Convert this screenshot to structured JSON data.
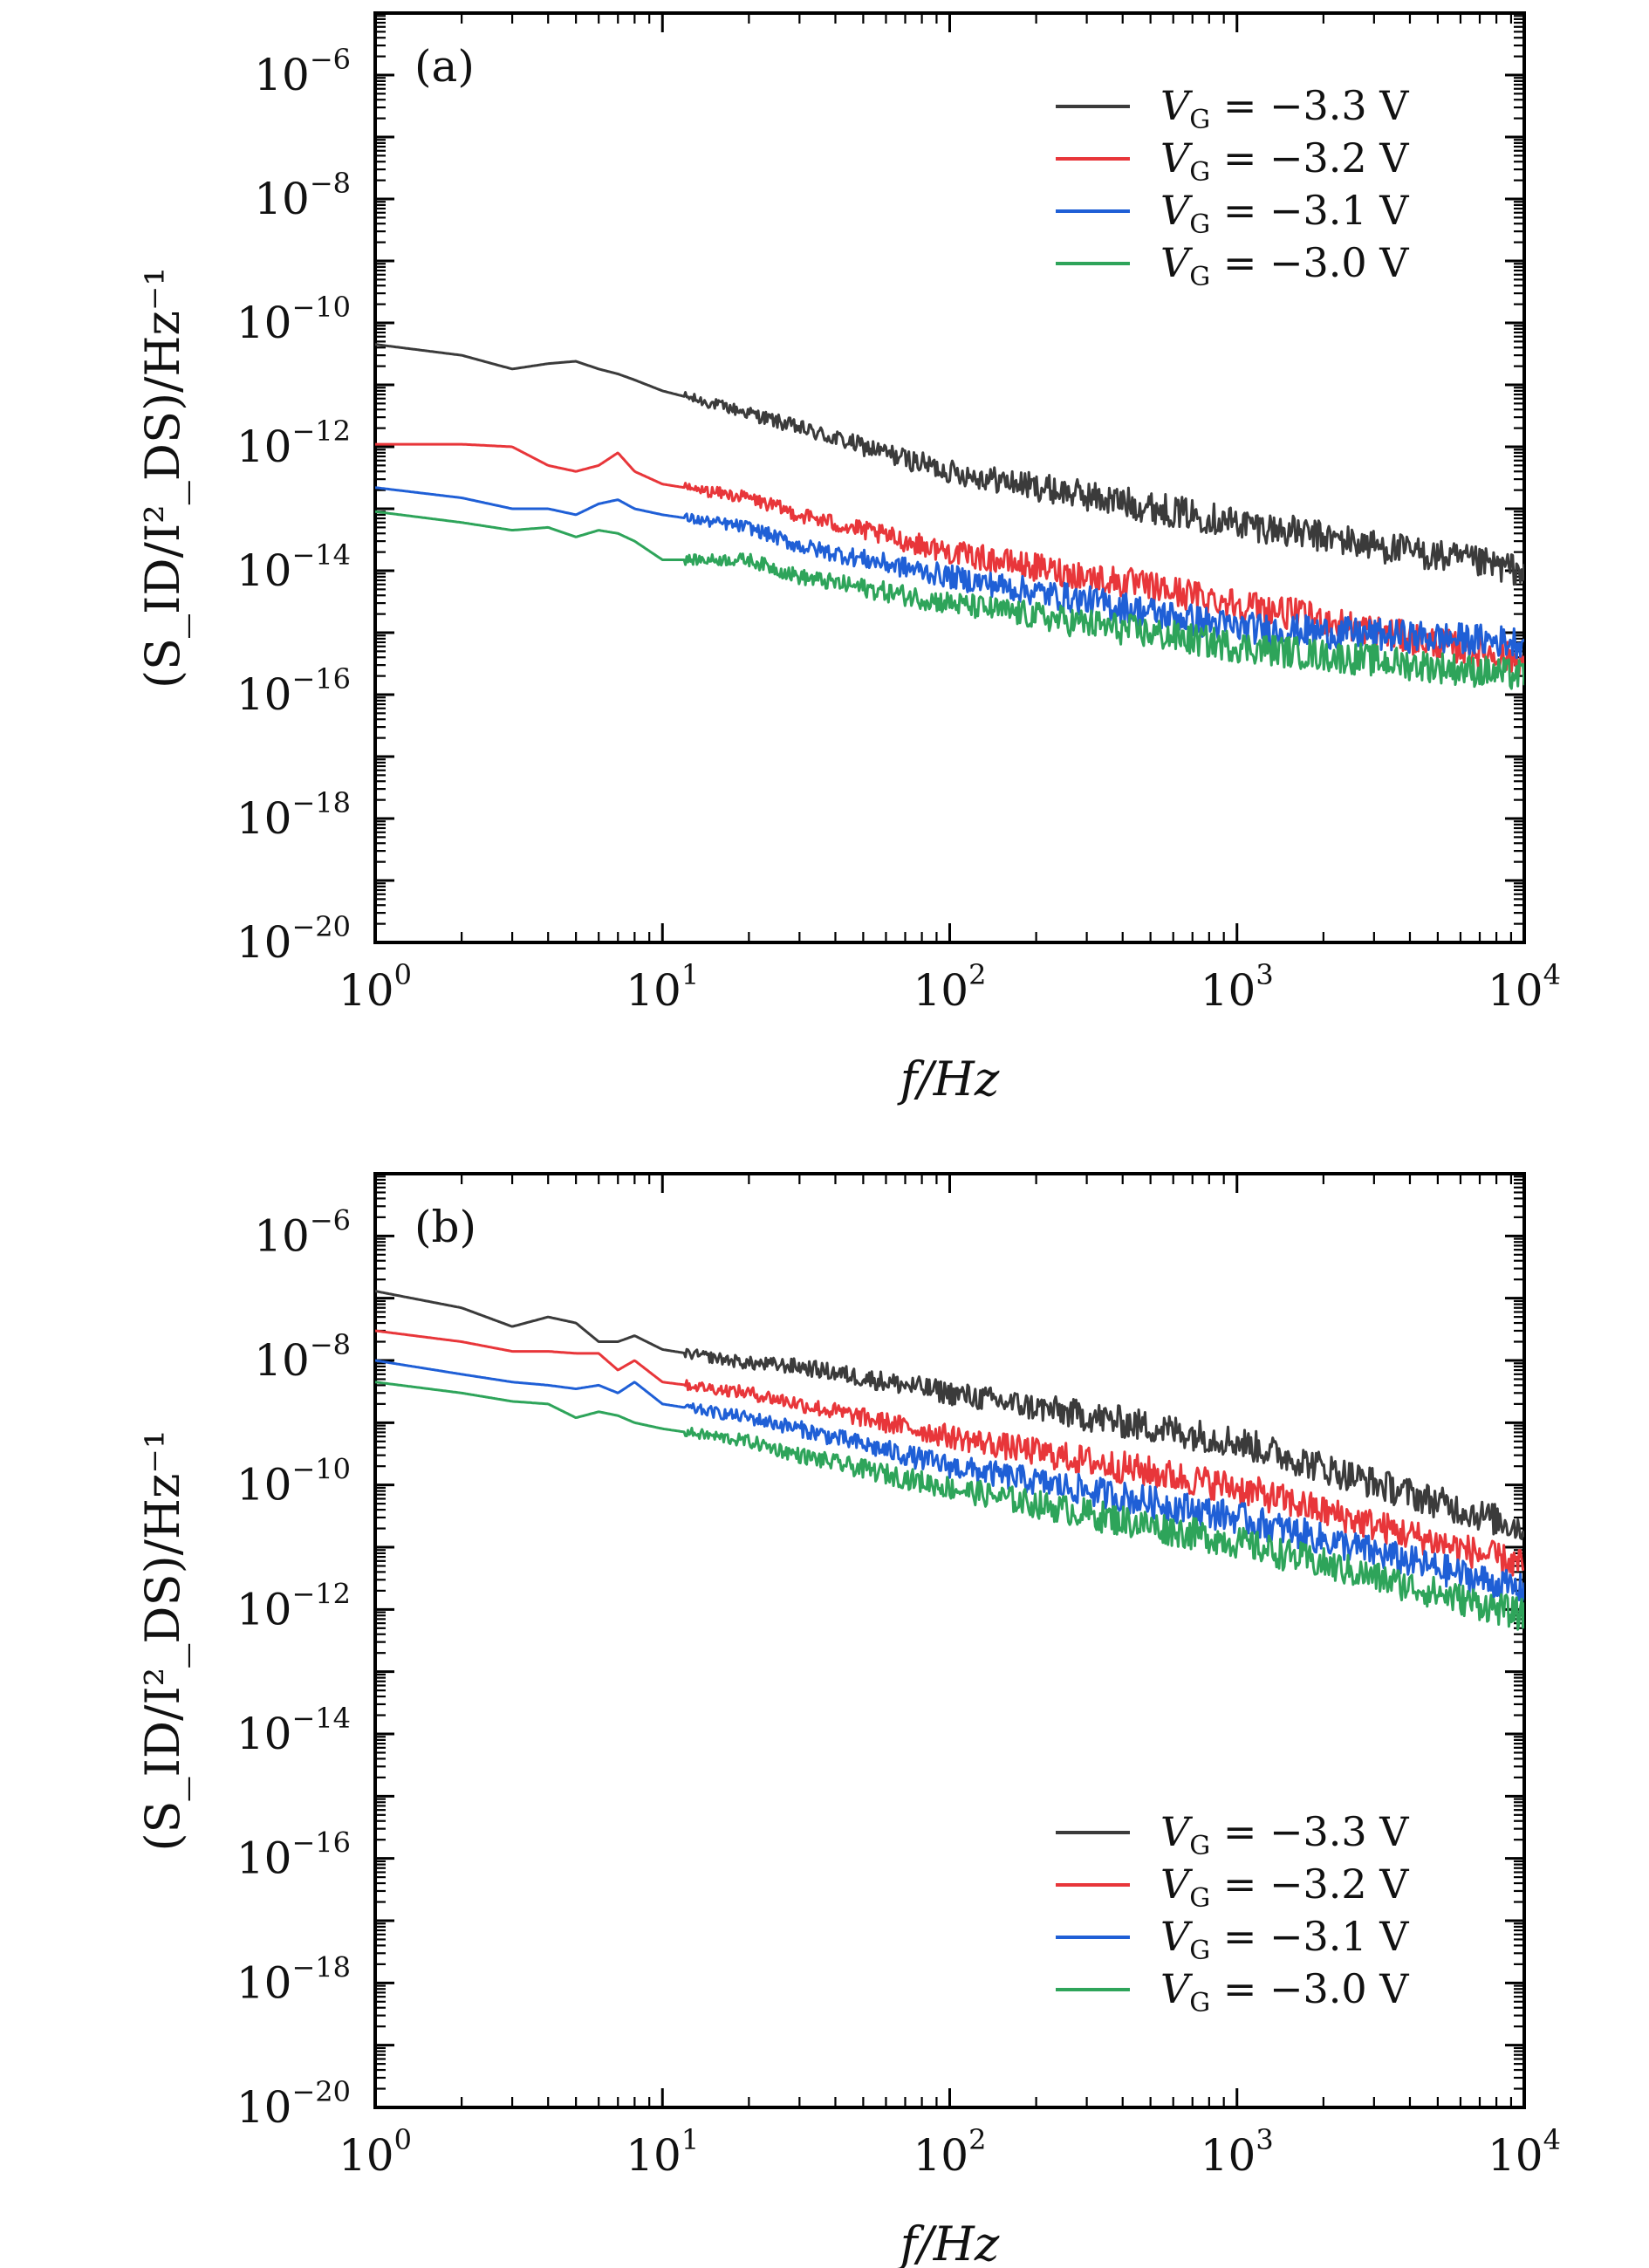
{
  "chart_data": [
    {
      "type": "line",
      "panel_label": "(a)",
      "xscale": "log",
      "yscale": "log",
      "xlim": [
        1,
        10000
      ],
      "ylim": [
        1e-20,
        1e-05
      ],
      "xlabel": "f/Hz",
      "ylabel": "(S_ID/I²_DS)/Hz⁻¹",
      "xticks": [
        {
          "base": "10",
          "exp": "0"
        },
        {
          "base": "10",
          "exp": "1"
        },
        {
          "base": "10",
          "exp": "2"
        },
        {
          "base": "10",
          "exp": "3"
        },
        {
          "base": "10",
          "exp": "4"
        }
      ],
      "yticks": [
        {
          "base": "10",
          "exp": "−20"
        },
        {
          "base": "10",
          "exp": "−18"
        },
        {
          "base": "10",
          "exp": "−16"
        },
        {
          "base": "10",
          "exp": "−14"
        },
        {
          "base": "10",
          "exp": "−12"
        },
        {
          "base": "10",
          "exp": "−10"
        },
        {
          "base": "10",
          "exp": "−8"
        },
        {
          "base": "10",
          "exp": "−6"
        }
      ],
      "legend_position": "top-right",
      "series": [
        {
          "name": "V_G = −3.3 V",
          "label_main": "V",
          "label_sub": "G",
          "label_rest": " = −3.3 V",
          "color": "#3b3b3b",
          "x": [
            1,
            2,
            3,
            4,
            5,
            6,
            7,
            8,
            10,
            20,
            30,
            100,
            1000,
            10000
          ],
          "y": [
            4.5e-11,
            3e-11,
            1.8e-11,
            2.2e-11,
            2.4e-11,
            1.8e-11,
            1.5e-11,
            1.2e-11,
            8e-12,
            3.5e-12,
            2e-12,
            4e-13,
            6e-14,
            1e-14
          ]
        },
        {
          "name": "V_G = −3.2 V",
          "label_main": "V",
          "label_sub": "G",
          "label_rest": " = −3.2 V",
          "color": "#e8363a",
          "x": [
            1,
            2,
            3,
            4,
            5,
            6,
            7,
            8,
            10,
            20,
            30,
            100,
            1000,
            10000
          ],
          "y": [
            1.1e-12,
            1.1e-12,
            1e-12,
            5e-13,
            4e-13,
            5e-13,
            8e-13,
            4e-13,
            2.5e-13,
            1.5e-13,
            8e-14,
            2e-14,
            3e-15,
            3.5e-16
          ]
        },
        {
          "name": "V_G = −3.1 V",
          "label_main": "V",
          "label_sub": "G",
          "label_rest": " = −3.1 V",
          "color": "#1f5fd6",
          "x": [
            1,
            2,
            3,
            4,
            5,
            6,
            7,
            8,
            10,
            20,
            30,
            100,
            1000,
            10000
          ],
          "y": [
            2.2e-13,
            1.5e-13,
            1e-13,
            1e-13,
            8e-14,
            1.2e-13,
            1.4e-13,
            1e-13,
            8e-14,
            5e-14,
            2.5e-14,
            8e-15,
            1.2e-15,
            7e-16
          ]
        },
        {
          "name": "V_G = −3.0 V",
          "label_main": "V",
          "label_sub": "G",
          "label_rest": " = −3.0 V",
          "color": "#2ea45a",
          "x": [
            1,
            2,
            3,
            4,
            5,
            6,
            7,
            8,
            10,
            20,
            30,
            100,
            1000,
            10000
          ],
          "y": [
            9e-14,
            6e-14,
            4.5e-14,
            5e-14,
            3.5e-14,
            4.5e-14,
            4e-14,
            3e-14,
            1.5e-14,
            1.5e-14,
            8e-15,
            3e-15,
            6e-16,
            2e-16
          ]
        }
      ]
    },
    {
      "type": "line",
      "panel_label": "(b)",
      "xscale": "log",
      "yscale": "log",
      "xlim": [
        1,
        10000
      ],
      "ylim": [
        1e-20,
        1e-05
      ],
      "xlabel": "f/Hz",
      "ylabel": "(S_ID/I²_DS)/Hz⁻¹",
      "xticks": [
        {
          "base": "10",
          "exp": "0"
        },
        {
          "base": "10",
          "exp": "1"
        },
        {
          "base": "10",
          "exp": "2"
        },
        {
          "base": "10",
          "exp": "3"
        },
        {
          "base": "10",
          "exp": "4"
        }
      ],
      "yticks": [
        {
          "base": "10",
          "exp": "−20"
        },
        {
          "base": "10",
          "exp": "−18"
        },
        {
          "base": "10",
          "exp": "−16"
        },
        {
          "base": "10",
          "exp": "−14"
        },
        {
          "base": "10",
          "exp": "−12"
        },
        {
          "base": "10",
          "exp": "−10"
        },
        {
          "base": "10",
          "exp": "−8"
        },
        {
          "base": "10",
          "exp": "−6"
        }
      ],
      "legend_position": "bottom-right",
      "series": [
        {
          "name": "V_G = −3.3 V",
          "label_main": "V",
          "label_sub": "G",
          "label_rest": " = −3.3 V",
          "color": "#3b3b3b",
          "x": [
            1,
            2,
            3,
            4,
            5,
            6,
            7,
            8,
            10,
            20,
            30,
            100,
            1000,
            10000
          ],
          "y": [
            1.3e-07,
            7e-08,
            3.5e-08,
            5e-08,
            4e-08,
            2e-08,
            2e-08,
            2.5e-08,
            1.5e-08,
            9e-09,
            8e-09,
            3e-09,
            5e-10,
            2e-11
          ]
        },
        {
          "name": "V_G = −3.2 V",
          "label_main": "V",
          "label_sub": "G",
          "label_rest": " = −3.2 V",
          "color": "#e8363a",
          "x": [
            1,
            2,
            3,
            4,
            5,
            6,
            7,
            8,
            10,
            20,
            30,
            100,
            1000,
            10000
          ],
          "y": [
            3e-08,
            2e-08,
            1.4e-08,
            1.4e-08,
            1.3e-08,
            1.3e-08,
            7e-09,
            1e-08,
            4.5e-09,
            3e-09,
            2e-09,
            6e-10,
            9e-11,
            5e-12
          ]
        },
        {
          "name": "V_G = −3.1 V",
          "label_main": "V",
          "label_sub": "G",
          "label_rest": " = −3.1 V",
          "color": "#1f5fd6",
          "x": [
            1,
            2,
            3,
            4,
            5,
            6,
            7,
            8,
            10,
            20,
            30,
            100,
            1000,
            10000
          ],
          "y": [
            1e-08,
            6e-09,
            4.5e-09,
            4e-09,
            3.5e-09,
            4e-09,
            3e-09,
            4.5e-09,
            2e-09,
            1.2e-09,
            8e-10,
            2e-10,
            3e-11,
            2e-12
          ]
        },
        {
          "name": "V_G = −3.0 V",
          "label_main": "V",
          "label_sub": "G",
          "label_rest": " = −3.0 V",
          "color": "#2ea45a",
          "x": [
            1,
            2,
            3,
            4,
            5,
            6,
            7,
            8,
            10,
            20,
            30,
            100,
            1000,
            10000
          ],
          "y": [
            4.5e-09,
            3e-09,
            2.2e-09,
            2e-09,
            1.2e-09,
            1.5e-09,
            1.3e-09,
            1e-09,
            8e-10,
            5e-10,
            3e-10,
            9e-11,
            1.2e-11,
            8e-13
          ]
        }
      ]
    }
  ]
}
